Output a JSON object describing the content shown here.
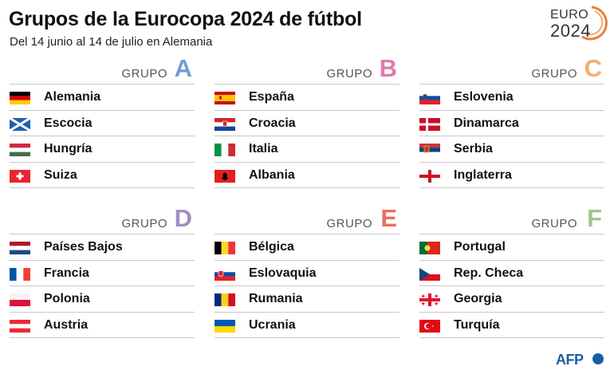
{
  "header": {
    "title": "Grupos de la Eurocopa 2024 de fútbol",
    "subtitle": "Del 14 junio al 14 de julio en Alemania",
    "logo_line1": "EURO",
    "logo_line2": "2024"
  },
  "group_word": "Grupo",
  "groups": [
    {
      "letter": "A",
      "color": "#6f9fd8",
      "teams": [
        "Alemania",
        "Escocia",
        "Hungría",
        "Suiza"
      ]
    },
    {
      "letter": "B",
      "color": "#e07ab0",
      "teams": [
        "España",
        "Croacia",
        "Italia",
        "Albania"
      ]
    },
    {
      "letter": "C",
      "color": "#f0b070",
      "teams": [
        "Eslovenia",
        "Dinamarca",
        "Serbia",
        "Inglaterra"
      ]
    },
    {
      "letter": "D",
      "color": "#a58bc6",
      "teams": [
        "Países Bajos",
        "Francia",
        "Polonia",
        "Austria"
      ]
    },
    {
      "letter": "E",
      "color": "#e8705a",
      "teams": [
        "Bélgica",
        "Eslovaquia",
        "Rumania",
        "Ucrania"
      ]
    },
    {
      "letter": "F",
      "color": "#9ec98a",
      "teams": [
        "Portugal",
        "Rep. Checa",
        "Georgia",
        "Turquía"
      ]
    }
  ],
  "credit": "AFP"
}
